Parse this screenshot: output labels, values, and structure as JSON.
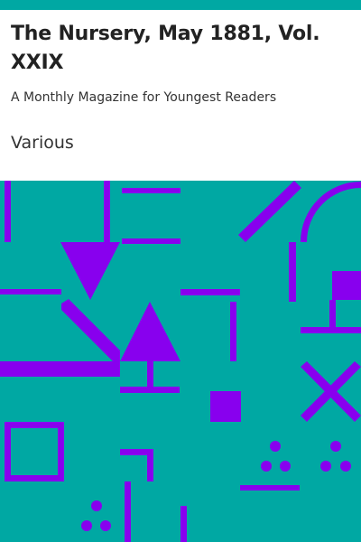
{
  "cover": {
    "title": "The Nursery, May 1881, Vol. XXIX",
    "subtitle": "A Monthly Magazine for Youngest Readers",
    "author": "Various"
  },
  "colors": {
    "accent_bar": "#00a8a3",
    "art_background": "#00a8a3",
    "art_shapes": "#8800ee",
    "text": "#222222"
  }
}
